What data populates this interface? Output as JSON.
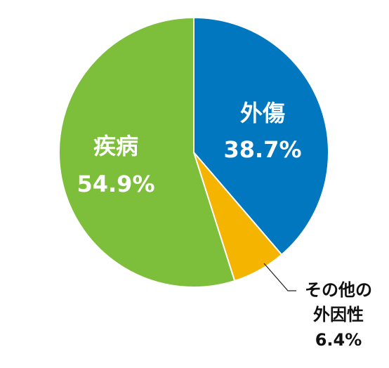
{
  "chart_data": {
    "type": "pie",
    "title": "",
    "slices": [
      {
        "label": "外傷",
        "value": 38.7,
        "value_label": "38.7%",
        "color": "#0077BE"
      },
      {
        "label": "その他の外因性",
        "label_lines": [
          "その他の",
          "外因性"
        ],
        "value": 6.4,
        "value_label": "6.4%",
        "color": "#F4B400"
      },
      {
        "label": "疾病",
        "value": 54.9,
        "value_label": "54.9%",
        "color": "#7DBE3A"
      }
    ],
    "start_angle": "12 o'clock",
    "direction": "clockwise",
    "legend": "none"
  }
}
